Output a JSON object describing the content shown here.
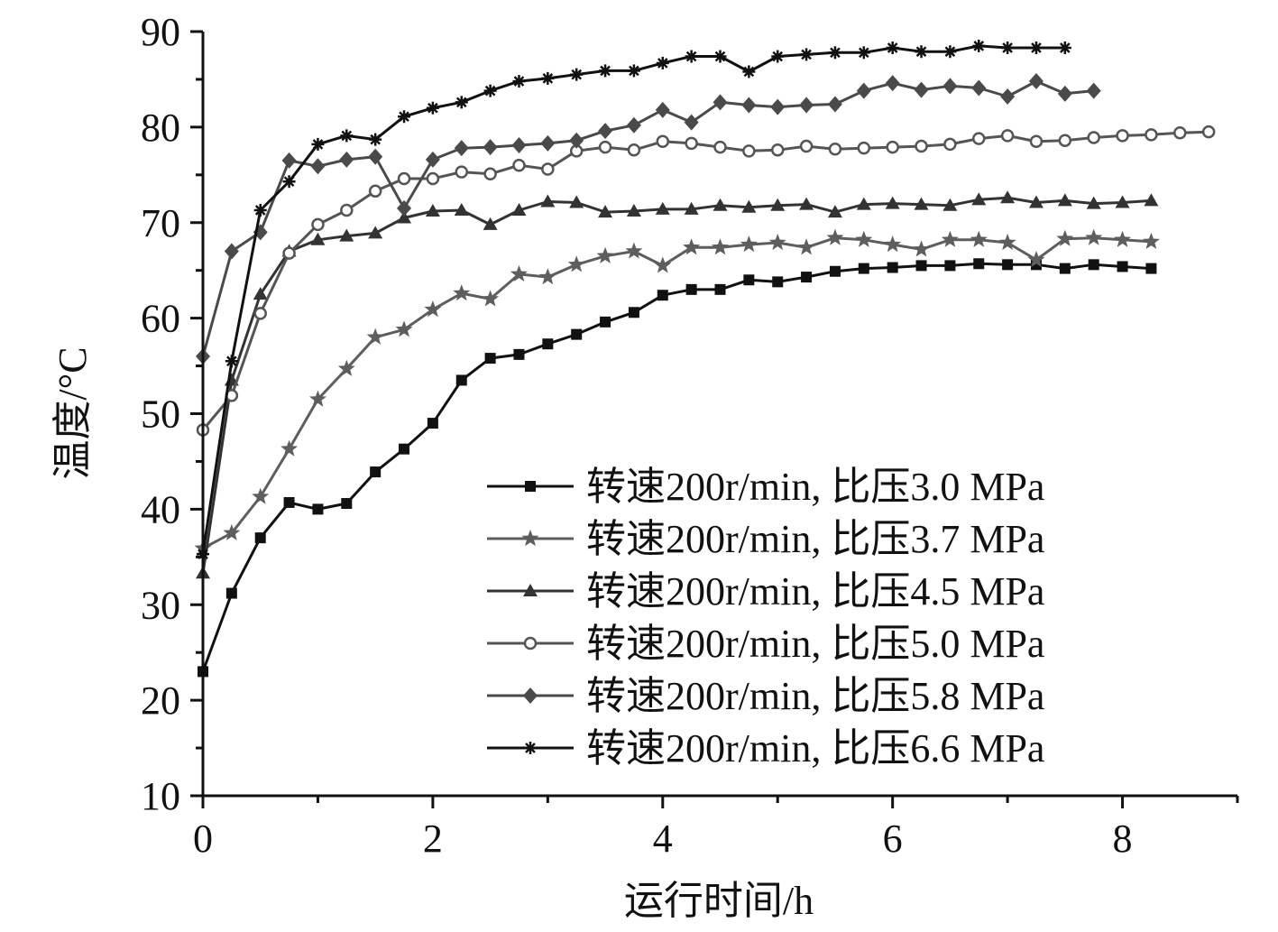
{
  "chart_data": {
    "type": "line",
    "title": "",
    "xlabel": "运行时间/h",
    "ylabel": "温度/°C",
    "xlim": [
      0,
      9
    ],
    "ylim": [
      10,
      90
    ],
    "x_ticks": [
      0,
      2,
      4,
      6,
      8
    ],
    "y_ticks": [
      10,
      20,
      30,
      40,
      50,
      60,
      70,
      80,
      90
    ],
    "x_tick_labels": [
      "0",
      "2",
      "4",
      "6",
      "8"
    ],
    "y_tick_labels": [
      "10",
      "20",
      "30",
      "40",
      "50",
      "60",
      "70",
      "80",
      "90"
    ],
    "grid": false,
    "legend_position": "bottom-right",
    "series": [
      {
        "name": "转速200r/min, 比压3.0 MPa",
        "marker": "square",
        "color": "#111111",
        "x": [
          0,
          0.25,
          0.5,
          0.75,
          1,
          1.25,
          1.5,
          1.75,
          2,
          2.25,
          2.5,
          2.75,
          3,
          3.25,
          3.5,
          3.75,
          4,
          4.25,
          4.5,
          4.75,
          5,
          5.25,
          5.5,
          5.75,
          6,
          6.25,
          6.5,
          6.75,
          7,
          7.25,
          7.5,
          7.75,
          8,
          8.25
        ],
        "y": [
          23,
          31.2,
          37,
          40.7,
          40,
          40.6,
          43.9,
          46.3,
          49,
          53.5,
          55.8,
          56.2,
          57.3,
          58.3,
          59.6,
          60.6,
          62.4,
          63,
          63,
          64,
          63.8,
          64.3,
          64.9,
          65.2,
          65.3,
          65.5,
          65.5,
          65.7,
          65.6,
          65.6,
          65.2,
          65.6,
          65.4,
          65.2
        ]
      },
      {
        "name": "转速200r/min, 比压3.7 MPa",
        "marker": "star",
        "color": "#5e5e5e",
        "x": [
          0,
          0.25,
          0.5,
          0.75,
          1,
          1.25,
          1.5,
          1.75,
          2,
          2.25,
          2.5,
          2.75,
          3,
          3.25,
          3.5,
          3.75,
          4,
          4.25,
          4.5,
          4.75,
          5,
          5.25,
          5.5,
          5.75,
          6,
          6.25,
          6.5,
          6.75,
          7,
          7.25,
          7.5,
          7.75,
          8,
          8.25
        ],
        "y": [
          35.9,
          37.5,
          41.3,
          46.3,
          51.5,
          54.7,
          58,
          58.8,
          60.9,
          62.6,
          62,
          64.6,
          64.3,
          65.6,
          66.5,
          67,
          65.5,
          67.4,
          67.4,
          67.7,
          67.9,
          67.4,
          68.4,
          68.2,
          67.7,
          67.2,
          68.2,
          68.2,
          67.9,
          66.1,
          68.3,
          68.4,
          68.2,
          68
        ]
      },
      {
        "name": "转速200r/min, 比压4.5 MPa",
        "marker": "triangle",
        "color": "#333333",
        "x": [
          0,
          0.25,
          0.5,
          0.75,
          1,
          1.25,
          1.5,
          1.75,
          2,
          2.25,
          2.5,
          2.75,
          3,
          3.25,
          3.5,
          3.75,
          4,
          4.25,
          4.5,
          4.75,
          5,
          5.25,
          5.5,
          5.75,
          6,
          6.25,
          6.5,
          6.75,
          7,
          7.25,
          7.5,
          7.75,
          8,
          8.25
        ],
        "y": [
          33.3,
          53.5,
          62.5,
          67,
          68.2,
          68.6,
          68.9,
          70.5,
          71.2,
          71.3,
          69.8,
          71.3,
          72.2,
          72.1,
          71.1,
          71.2,
          71.4,
          71.4,
          71.8,
          71.6,
          71.8,
          71.9,
          71.1,
          71.9,
          72,
          71.9,
          71.8,
          72.4,
          72.6,
          72.1,
          72.3,
          72,
          72.1,
          72.3
        ]
      },
      {
        "name": "转速200r/min, 比压5.0 MPa",
        "marker": "circle-open",
        "color": "#555555",
        "x": [
          0,
          0.25,
          0.5,
          0.75,
          1,
          1.25,
          1.5,
          1.75,
          2,
          2.25,
          2.5,
          2.75,
          3,
          3.25,
          3.5,
          3.75,
          4,
          4.25,
          4.5,
          4.75,
          5,
          5.25,
          5.5,
          5.75,
          6,
          6.25,
          6.5,
          6.75,
          7,
          7.25,
          7.5,
          7.75,
          8,
          8.25,
          8.5,
          8.75
        ],
        "y": [
          48.3,
          51.9,
          60.5,
          66.8,
          69.8,
          71.3,
          73.3,
          74.6,
          74.6,
          75.3,
          75.1,
          76,
          75.6,
          77.5,
          77.9,
          77.6,
          78.5,
          78.3,
          77.9,
          77.5,
          77.6,
          78,
          77.7,
          77.8,
          77.9,
          78,
          78.2,
          78.8,
          79.1,
          78.5,
          78.6,
          78.9,
          79.1,
          79.2,
          79.4,
          79.5
        ]
      },
      {
        "name": "转速200r/min, 比压5.8 MPa",
        "marker": "diamond",
        "color": "#4a4a4a",
        "x": [
          0,
          0.25,
          0.5,
          0.75,
          1,
          1.25,
          1.5,
          1.75,
          2,
          2.25,
          2.5,
          2.75,
          3,
          3.25,
          3.5,
          3.75,
          4,
          4.25,
          4.5,
          4.75,
          5,
          5.25,
          5.5,
          5.75,
          6,
          6.25,
          6.5,
          6.75,
          7,
          7.25,
          7.5,
          7.75
        ],
        "y": [
          56,
          67,
          69,
          76.5,
          75.9,
          76.6,
          76.9,
          71.5,
          76.6,
          77.8,
          77.9,
          78.1,
          78.3,
          78.6,
          79.6,
          80.2,
          81.8,
          80.5,
          82.6,
          82.3,
          82.1,
          82.3,
          82.4,
          83.8,
          84.6,
          83.9,
          84.3,
          84.1,
          83.2,
          84.8,
          83.5,
          83.8
        ]
      },
      {
        "name": "转速200r/min, 比压6.6 MPa",
        "marker": "asterisk",
        "color": "#111111",
        "x": [
          0,
          0.25,
          0.5,
          0.75,
          1,
          1.25,
          1.5,
          1.75,
          2,
          2.25,
          2.5,
          2.75,
          3,
          3.25,
          3.5,
          3.75,
          4,
          4.25,
          4.5,
          4.75,
          5,
          5.25,
          5.5,
          5.75,
          6,
          6.25,
          6.5,
          6.75,
          7,
          7.25,
          7.5
        ],
        "y": [
          35.3,
          55.5,
          71.3,
          74.3,
          78.2,
          79.1,
          78.7,
          81.1,
          82,
          82.6,
          83.8,
          84.8,
          85.1,
          85.5,
          85.9,
          85.9,
          86.7,
          87.4,
          87.4,
          85.8,
          87.4,
          87.6,
          87.8,
          87.8,
          88.3,
          87.9,
          87.9,
          88.5,
          88.3,
          88.3,
          88.3
        ]
      }
    ]
  }
}
